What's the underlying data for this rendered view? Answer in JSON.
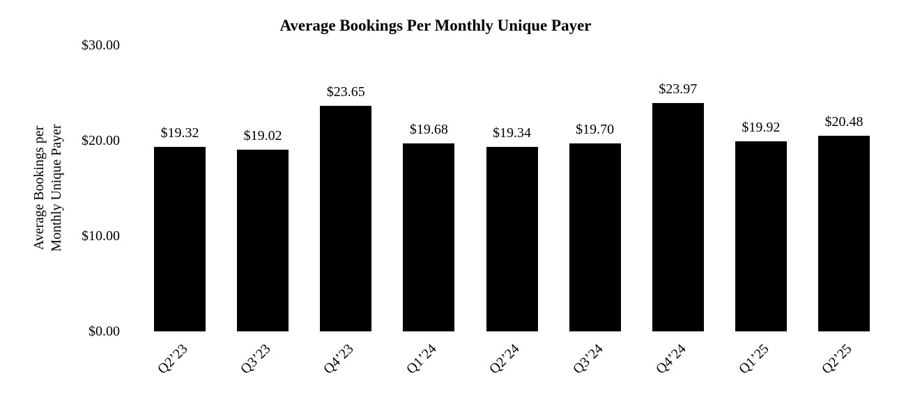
{
  "title": "Average Bookings Per Monthly Unique Payer",
  "colors": {
    "bar": "#000000",
    "background": "#ffffff",
    "text": "#000000"
  },
  "chart_data": {
    "type": "bar",
    "title": "Average Bookings Per Monthly Unique Payer",
    "categories": [
      "Q2’23",
      "Q3’23",
      "Q4’23",
      "Q1’24",
      "Q2’24",
      "Q3’24",
      "Q4’24",
      "Q1’25",
      "Q2’25"
    ],
    "values": [
      19.32,
      19.02,
      23.65,
      19.68,
      19.34,
      19.7,
      23.97,
      19.92,
      20.48
    ],
    "value_labels": [
      "$19.32",
      "$19.02",
      "$23.65",
      "$19.68",
      "$19.34",
      "$19.70",
      "$23.97",
      "$19.92",
      "$20.48"
    ],
    "ylabel_lines": [
      "Average Bookings per",
      "Monthly Unique Payer"
    ],
    "ylabel": "Average Bookings per Monthly Unique Payer",
    "xlabel": "",
    "y_ticks": [
      "$30.00",
      "$20.00",
      "$10.00",
      "$0.00"
    ],
    "ylim": [
      0,
      30
    ],
    "grid": false,
    "legend": false,
    "bar_color": "#000000",
    "background": "#ffffff"
  }
}
